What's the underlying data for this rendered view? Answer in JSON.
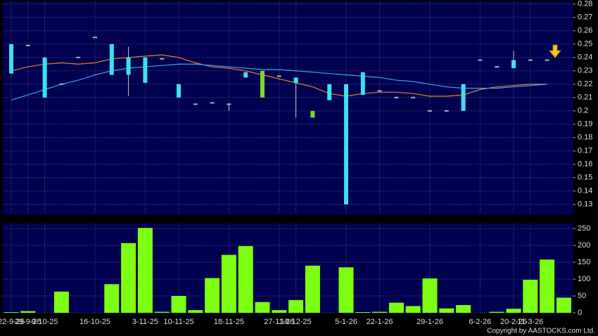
{
  "chart_data": [
    {
      "type": "candlestick",
      "categories": [
        "22-9-25",
        "29-9-25",
        "9-10-25",
        null,
        null,
        "16-10-25",
        null,
        null,
        "3-11-25",
        null,
        "10-11-25",
        null,
        null,
        "18-11-25",
        null,
        null,
        "27-11-25",
        "18-12-25",
        null,
        null,
        "5-1-26",
        null,
        "22-1-26",
        null,
        null,
        "29-1-26",
        null,
        null,
        "6-2-26",
        null,
        "20-2-26",
        "11-3-26",
        null,
        null
      ],
      "open": [
        0.25,
        0.249,
        0.24,
        0.22,
        0.24,
        0.255,
        0.25,
        0.24,
        0.24,
        0.239,
        0.22,
        0.205,
        0.206,
        0.205,
        0.229,
        0.21,
        0.226,
        0.225,
        0.195,
        0.22,
        0.22,
        0.229,
        0.215,
        0.21,
        0.21,
        0.2,
        0.2,
        0.22,
        0.238,
        0.233,
        0.238,
        0.238,
        0.238,
        null
      ],
      "high": [
        0.25,
        0.249,
        0.24,
        0.22,
        0.24,
        0.255,
        0.25,
        0.248,
        0.24,
        0.239,
        0.22,
        0.205,
        0.206,
        0.205,
        0.229,
        0.23,
        0.226,
        0.225,
        0.2,
        0.22,
        0.22,
        0.229,
        0.215,
        0.21,
        0.21,
        0.2,
        0.2,
        0.22,
        0.238,
        0.233,
        0.245,
        0.238,
        0.238,
        null
      ],
      "low": [
        0.228,
        0.249,
        0.21,
        0.22,
        0.24,
        0.255,
        0.227,
        0.211,
        0.221,
        0.239,
        0.21,
        0.205,
        0.206,
        0.2,
        0.225,
        0.21,
        0.226,
        0.195,
        0.195,
        0.208,
        0.13,
        0.212,
        0.215,
        0.21,
        0.21,
        0.2,
        0.2,
        0.2,
        0.238,
        0.233,
        0.232,
        0.238,
        0.238,
        null
      ],
      "close": [
        0.228,
        0.249,
        0.21,
        0.22,
        0.24,
        0.255,
        0.227,
        0.227,
        0.221,
        0.239,
        0.21,
        0.205,
        0.206,
        0.205,
        0.225,
        0.23,
        0.226,
        0.221,
        0.2,
        0.208,
        0.13,
        0.212,
        0.215,
        0.21,
        0.21,
        0.2,
        0.2,
        0.2,
        0.238,
        0.233,
        0.232,
        0.238,
        0.238,
        null
      ],
      "up_color": "#7ed62a",
      "down_color": "#3ee0ee",
      "flat_color": "#b0b0b0",
      "series": [
        {
          "color": "#e8802a",
          "values": [
            0.23,
            0.233,
            0.235,
            0.236,
            0.235,
            0.236,
            0.239,
            0.24,
            0.241,
            0.242,
            0.24,
            0.236,
            0.233,
            0.232,
            0.23,
            0.227,
            0.224,
            0.221,
            0.218,
            0.213,
            0.211,
            0.213,
            0.214,
            0.214,
            0.213,
            0.211,
            0.211,
            0.212,
            0.216,
            0.218,
            0.219,
            0.22,
            0.22,
            null
          ]
        },
        {
          "color": "#3c9ef0",
          "values": [
            0.208,
            0.212,
            0.216,
            0.22,
            0.223,
            0.227,
            0.23,
            0.232,
            0.233,
            0.234,
            0.235,
            0.235,
            0.234,
            0.233,
            0.232,
            0.231,
            0.231,
            0.23,
            0.229,
            0.228,
            0.227,
            0.226,
            0.225,
            0.223,
            0.222,
            0.22,
            0.218,
            0.217,
            0.217,
            0.217,
            0.218,
            0.219,
            0.22,
            null
          ]
        }
      ],
      "ylim": [
        0.1225,
        0.282
      ],
      "yticks": [
        0.13,
        0.14,
        0.15,
        0.16,
        0.17,
        0.18,
        0.19,
        0.2,
        0.21,
        0.22,
        0.23,
        0.24,
        0.25,
        0.26,
        0.27,
        0.28
      ],
      "grid": true
    },
    {
      "type": "bar",
      "values": [
        2,
        5,
        0,
        63,
        0,
        0,
        85,
        207,
        252,
        3,
        50,
        8,
        103,
        172,
        198,
        32,
        8,
        38,
        140,
        0,
        135,
        2,
        3,
        30,
        20,
        102,
        13,
        23,
        0,
        3,
        12,
        98,
        158,
        45
      ],
      "color": "#7cff10",
      "ylim": [
        0,
        265
      ],
      "yticks": [
        0,
        50,
        100,
        150,
        200,
        250
      ],
      "grid": true
    }
  ],
  "footer": "Copyright by AASTOCKS.com Ltd."
}
